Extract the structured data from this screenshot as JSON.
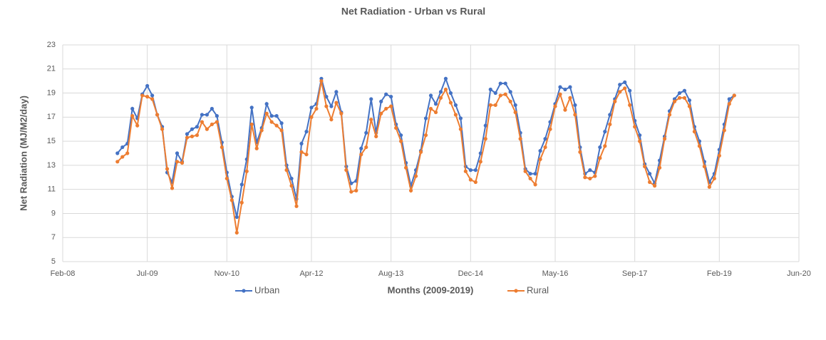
{
  "chart_data": {
    "type": "line",
    "title": "Net Radiation - Urban vs Rural",
    "xlabel": "Months (2009-2019)",
    "ylabel": "Net Radiation (MJ/M2/day)",
    "x": [
      "2009-01",
      "2009-02",
      "2009-03",
      "2009-04",
      "2009-05",
      "2009-06",
      "2009-07",
      "2009-08",
      "2009-09",
      "2009-10",
      "2009-11",
      "2009-12",
      "2010-01",
      "2010-02",
      "2010-03",
      "2010-04",
      "2010-05",
      "2010-06",
      "2010-07",
      "2010-08",
      "2010-09",
      "2010-10",
      "2010-11",
      "2010-12",
      "2011-01",
      "2011-02",
      "2011-03",
      "2011-04",
      "2011-05",
      "2011-06",
      "2011-07",
      "2011-08",
      "2011-09",
      "2011-10",
      "2011-11",
      "2011-12",
      "2012-01",
      "2012-02",
      "2012-03",
      "2012-04",
      "2012-05",
      "2012-06",
      "2012-07",
      "2012-08",
      "2012-09",
      "2012-10",
      "2012-11",
      "2012-12",
      "2013-01",
      "2013-02",
      "2013-03",
      "2013-04",
      "2013-05",
      "2013-06",
      "2013-07",
      "2013-08",
      "2013-09",
      "2013-10",
      "2013-11",
      "2013-12",
      "2014-01",
      "2014-02",
      "2014-03",
      "2014-04",
      "2014-05",
      "2014-06",
      "2014-07",
      "2014-08",
      "2014-09",
      "2014-10",
      "2014-11",
      "2014-12",
      "2015-01",
      "2015-02",
      "2015-03",
      "2015-04",
      "2015-05",
      "2015-06",
      "2015-07",
      "2015-08",
      "2015-09",
      "2015-10",
      "2015-11",
      "2015-12",
      "2016-01",
      "2016-02",
      "2016-03",
      "2016-04",
      "2016-05",
      "2016-06",
      "2016-07",
      "2016-08",
      "2016-09",
      "2016-10",
      "2016-11",
      "2016-12",
      "2017-01",
      "2017-02",
      "2017-03",
      "2017-04",
      "2017-05",
      "2017-06",
      "2017-07",
      "2017-08",
      "2017-09",
      "2017-10",
      "2017-11",
      "2017-12",
      "2018-01",
      "2018-02",
      "2018-03",
      "2018-04",
      "2018-05",
      "2018-06",
      "2018-07",
      "2018-08",
      "2018-09",
      "2018-10",
      "2018-11",
      "2018-12",
      "2019-01",
      "2019-02",
      "2019-03",
      "2019-04",
      "2019-05"
    ],
    "series": [
      {
        "name": "Urban",
        "color": "#4472c4",
        "values": [
          14.0,
          14.5,
          14.8,
          17.7,
          16.9,
          18.9,
          19.6,
          18.8,
          17.2,
          16.2,
          12.4,
          11.6,
          14.0,
          13.3,
          15.6,
          16.0,
          16.2,
          17.2,
          17.2,
          17.7,
          17.1,
          14.9,
          12.4,
          10.4,
          8.7,
          11.4,
          13.5,
          17.8,
          14.9,
          16.1,
          18.1,
          17.1,
          17.1,
          16.5,
          13.0,
          11.9,
          10.2,
          14.8,
          15.8,
          17.8,
          18.1,
          20.2,
          18.7,
          17.9,
          19.1,
          17.4,
          12.9,
          11.5,
          11.7,
          14.4,
          15.7,
          18.5,
          15.7,
          18.3,
          18.9,
          18.7,
          16.4,
          15.5,
          13.2,
          11.3,
          12.6,
          14.2,
          16.9,
          18.8,
          18.1,
          19.1,
          20.2,
          19.0,
          18.0,
          16.9,
          12.9,
          12.6,
          12.6,
          14.0,
          16.3,
          19.3,
          19.0,
          19.8,
          19.8,
          19.1,
          18.0,
          15.7,
          12.7,
          12.3,
          12.3,
          14.2,
          15.2,
          16.6,
          18.1,
          19.5,
          19.3,
          19.5,
          18.0,
          14.5,
          12.3,
          12.6,
          12.4,
          14.5,
          15.8,
          17.2,
          18.5,
          19.7,
          19.9,
          19.2,
          16.7,
          15.5,
          13.1,
          12.3,
          11.5,
          13.4,
          15.4,
          17.5,
          18.5,
          19.0,
          19.2,
          18.4,
          16.2,
          15.0,
          13.3,
          11.6,
          12.3,
          14.3,
          16.4,
          18.5,
          18.8
        ]
      },
      {
        "name": "Rural",
        "color": "#ed7d31",
        "values": [
          13.3,
          13.7,
          14.0,
          17.1,
          16.3,
          18.8,
          18.7,
          18.5,
          17.2,
          16.0,
          12.7,
          11.1,
          13.3,
          13.2,
          15.3,
          15.4,
          15.5,
          16.6,
          16.0,
          16.4,
          16.6,
          14.5,
          11.9,
          10.1,
          7.4,
          9.9,
          12.5,
          16.4,
          14.4,
          15.9,
          17.3,
          16.6,
          16.3,
          15.9,
          12.6,
          11.3,
          9.6,
          14.1,
          13.9,
          17.0,
          17.7,
          20.0,
          17.9,
          16.8,
          18.2,
          17.3,
          12.6,
          10.8,
          10.9,
          13.9,
          14.5,
          16.8,
          15.4,
          17.3,
          17.7,
          17.9,
          16.1,
          15.0,
          12.8,
          10.9,
          12.1,
          14.1,
          15.5,
          17.7,
          17.4,
          18.6,
          19.3,
          18.2,
          17.2,
          16.0,
          12.5,
          11.8,
          11.6,
          13.3,
          15.2,
          18.0,
          18.0,
          18.8,
          18.9,
          18.3,
          17.4,
          15.2,
          12.5,
          11.9,
          11.4,
          13.5,
          14.5,
          16.0,
          17.9,
          18.9,
          17.6,
          18.6,
          17.2,
          14.1,
          12.0,
          11.9,
          12.1,
          13.6,
          14.6,
          16.4,
          18.3,
          19.1,
          19.4,
          18.0,
          16.2,
          15.0,
          12.9,
          11.6,
          11.3,
          12.8,
          15.2,
          17.2,
          18.3,
          18.6,
          18.6,
          17.9,
          15.8,
          14.6,
          12.9,
          11.2,
          11.9,
          13.8,
          15.9,
          18.1,
          18.8
        ]
      }
    ],
    "xlim": [
      "2008-02",
      "2020-06"
    ],
    "xticks": [
      {
        "value": "2008-02",
        "label": "Feb-08"
      },
      {
        "value": "2009-07",
        "label": "Jul-09"
      },
      {
        "value": "2010-11",
        "label": "Nov-10"
      },
      {
        "value": "2012-04",
        "label": "Apr-12"
      },
      {
        "value": "2013-08",
        "label": "Aug-13"
      },
      {
        "value": "2014-12",
        "label": "Dec-14"
      },
      {
        "value": "2016-05",
        "label": "May-16"
      },
      {
        "value": "2017-09",
        "label": "Sep-17"
      },
      {
        "value": "2019-02",
        "label": "Feb-19"
      },
      {
        "value": "2020-06",
        "label": "Jun-20"
      }
    ],
    "ylim": [
      5,
      23
    ],
    "yticks": [
      5,
      7,
      9,
      11,
      13,
      15,
      17,
      19,
      21,
      23
    ],
    "grid": true,
    "legend": "bottom"
  }
}
